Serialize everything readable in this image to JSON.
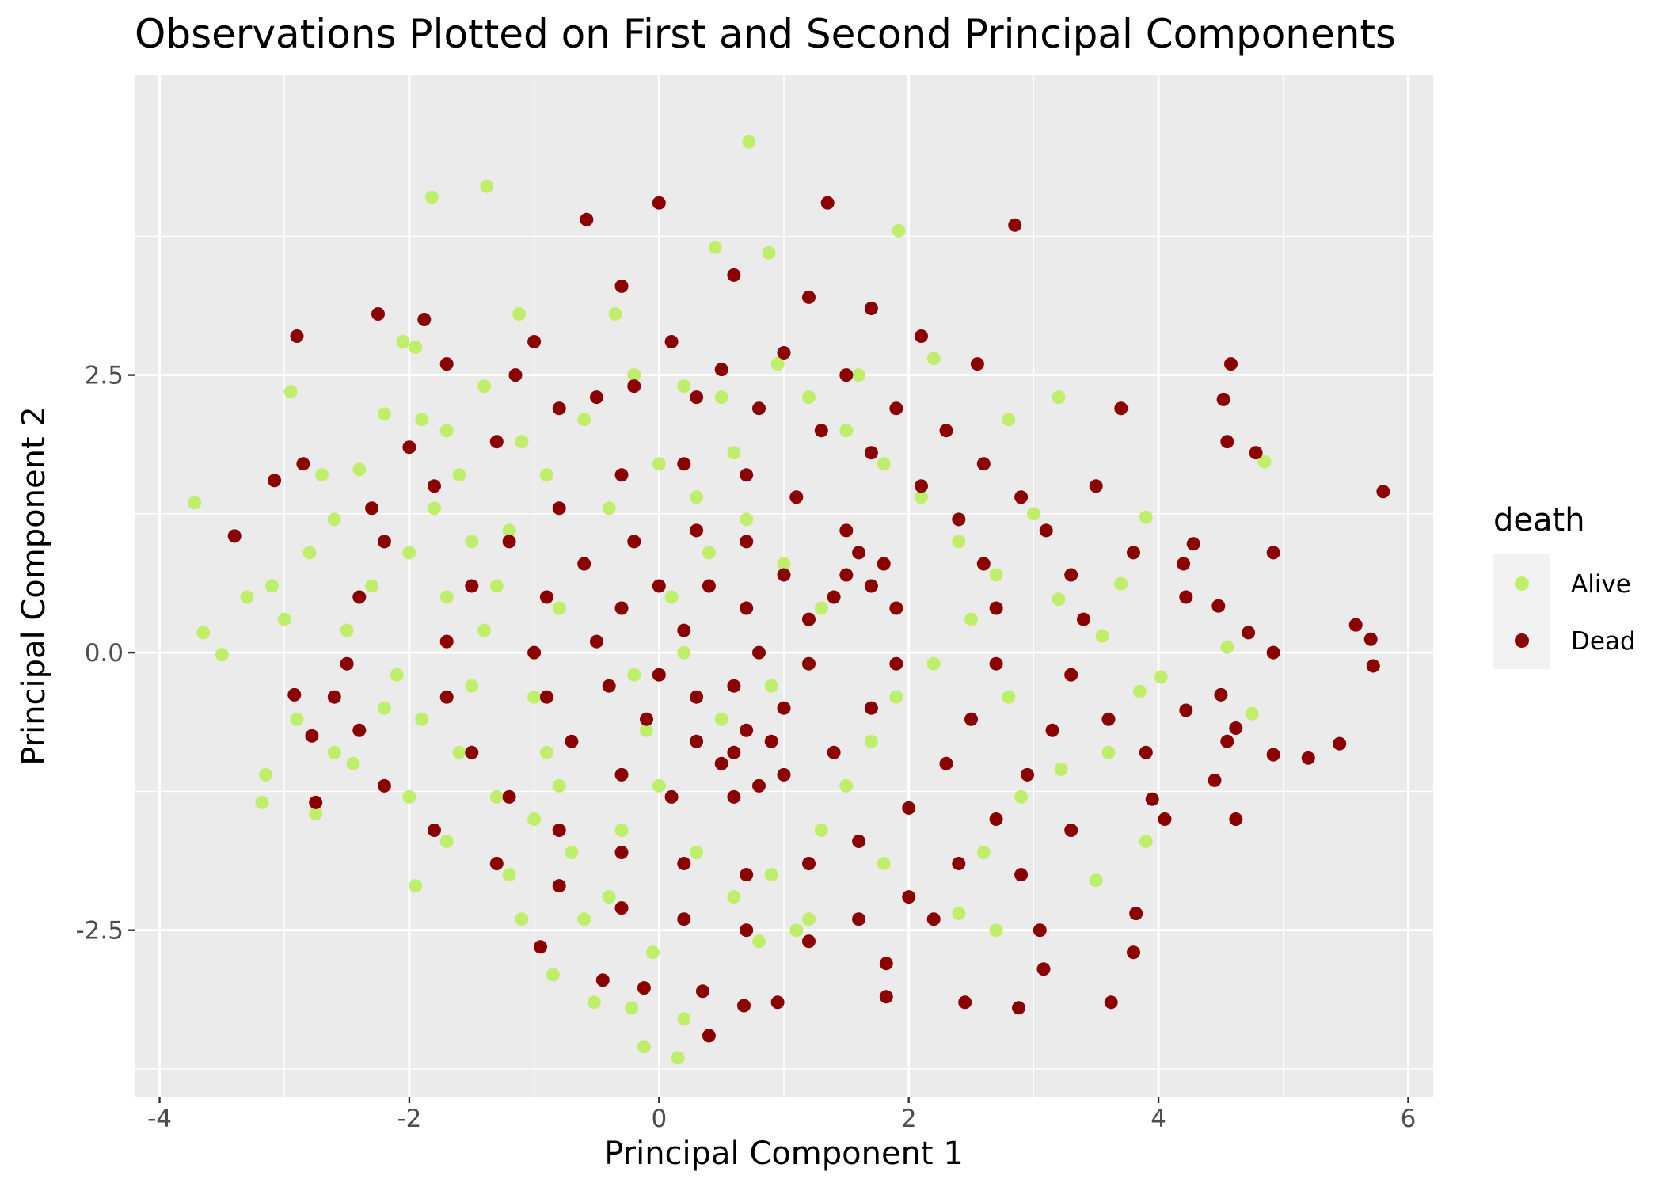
{
  "chart_data": {
    "type": "scatter",
    "title": "Observations Plotted on First and Second Principal Components",
    "xlabel": "Principal Component 1",
    "ylabel": "Principal Component 2",
    "xlim": [
      -4.2,
      6.2
    ],
    "ylim": [
      -4.0,
      5.2
    ],
    "x_ticks": [
      -4,
      -2,
      0,
      2,
      4,
      6
    ],
    "x_tick_labels": [
      "-4",
      "-2",
      "0",
      "2",
      "4",
      "6"
    ],
    "y_ticks": [
      -2.5,
      0.0,
      2.5
    ],
    "y_tick_labels": [
      "-2.5",
      "0.0",
      "2.5"
    ],
    "grid": true,
    "legend": {
      "title": "death",
      "placement": "right",
      "entries": [
        {
          "label": "Alive",
          "color": "#bfef6a"
        },
        {
          "label": "Dead",
          "color": "#8b0000"
        }
      ]
    },
    "series": [
      {
        "name": "Alive",
        "color": "#bfef6a",
        "points": [
          [
            0.72,
            4.6
          ],
          [
            -1.82,
            4.1
          ],
          [
            -1.38,
            4.2
          ],
          [
            0.45,
            3.65
          ],
          [
            0.88,
            3.6
          ],
          [
            1.92,
            3.8
          ],
          [
            -3.72,
            1.35
          ],
          [
            -3.65,
            0.18
          ],
          [
            -3.5,
            -0.02
          ],
          [
            -3.15,
            -1.1
          ],
          [
            -3.18,
            -1.35
          ],
          [
            -2.95,
            2.35
          ],
          [
            -2.05,
            2.8
          ],
          [
            -1.95,
            2.75
          ],
          [
            -1.12,
            3.05
          ],
          [
            -0.35,
            3.05
          ],
          [
            2.2,
            2.65
          ],
          [
            3.2,
            2.3
          ],
          [
            2.8,
            2.1
          ],
          [
            4.85,
            1.72
          ],
          [
            3.9,
            1.22
          ],
          [
            3.0,
            1.25
          ],
          [
            4.55,
            0.05
          ],
          [
            3.7,
            0.62
          ],
          [
            3.2,
            0.48
          ],
          [
            3.55,
            0.15
          ],
          [
            3.85,
            -0.35
          ],
          [
            4.75,
            -0.55
          ],
          [
            4.02,
            -0.22
          ],
          [
            3.6,
            -0.9
          ],
          [
            3.22,
            -1.05
          ],
          [
            3.9,
            -1.7
          ],
          [
            3.5,
            -2.05
          ],
          [
            2.4,
            -2.35
          ],
          [
            2.7,
            -2.5
          ],
          [
            1.8,
            -1.9
          ],
          [
            1.2,
            -2.4
          ],
          [
            0.2,
            -3.3
          ],
          [
            -0.12,
            -3.55
          ],
          [
            0.15,
            -3.65
          ],
          [
            -0.52,
            -3.15
          ],
          [
            -0.22,
            -3.2
          ],
          [
            -0.85,
            -2.9
          ],
          [
            -1.1,
            -2.4
          ],
          [
            -1.95,
            -2.1
          ],
          [
            -2.75,
            -1.45
          ],
          [
            -2.6,
            -0.9
          ],
          [
            -2.9,
            -0.6
          ],
          [
            -3.0,
            0.3
          ],
          [
            -3.3,
            0.5
          ],
          [
            -2.4,
            1.65
          ],
          [
            -2.7,
            1.6
          ],
          [
            -2.2,
            2.15
          ],
          [
            -1.7,
            2.0
          ],
          [
            -1.4,
            2.4
          ],
          [
            -1.8,
            1.3
          ],
          [
            -1.5,
            1.0
          ],
          [
            -1.2,
            1.1
          ],
          [
            -0.9,
            1.6
          ],
          [
            -0.6,
            2.1
          ],
          [
            -0.2,
            2.5
          ],
          [
            0.2,
            2.4
          ],
          [
            0.5,
            2.3
          ],
          [
            0.6,
            1.8
          ],
          [
            -2.3,
            0.6
          ],
          [
            -2.0,
            0.9
          ],
          [
            -1.7,
            0.5
          ],
          [
            -1.4,
            0.2
          ],
          [
            -2.1,
            -0.2
          ],
          [
            -1.9,
            -0.6
          ],
          [
            -1.6,
            -0.9
          ],
          [
            -1.3,
            -1.3
          ],
          [
            -1.0,
            -1.5
          ],
          [
            -0.7,
            -1.8
          ],
          [
            -0.4,
            -2.2
          ],
          [
            -0.6,
            -2.4
          ],
          [
            -0.3,
            -1.6
          ],
          [
            0.0,
            -1.2
          ],
          [
            0.3,
            -1.8
          ],
          [
            0.6,
            -2.2
          ],
          [
            0.9,
            -2.0
          ],
          [
            1.3,
            -1.6
          ],
          [
            1.5,
            -1.2
          ],
          [
            1.7,
            -0.8
          ],
          [
            1.9,
            -0.4
          ],
          [
            2.2,
            -0.1
          ],
          [
            2.5,
            0.3
          ],
          [
            2.7,
            0.7
          ],
          [
            2.4,
            1.0
          ],
          [
            2.1,
            1.4
          ],
          [
            1.8,
            1.7
          ],
          [
            1.5,
            2.0
          ],
          [
            1.2,
            2.3
          ],
          [
            -0.8,
            0.4
          ],
          [
            -0.5,
            0.1
          ],
          [
            -0.2,
            -0.2
          ],
          [
            0.1,
            0.5
          ],
          [
            0.4,
            0.9
          ],
          [
            0.7,
            1.2
          ],
          [
            1.0,
            0.8
          ],
          [
            1.3,
            0.4
          ],
          [
            0.9,
            -0.3
          ],
          [
            0.5,
            -0.6
          ],
          [
            -1.0,
            -0.4
          ],
          [
            -1.3,
            0.6
          ],
          [
            -1.6,
            1.6
          ],
          [
            -2.5,
            0.2
          ],
          [
            -2.2,
            -0.5
          ],
          [
            -1.1,
            1.9
          ],
          [
            -0.4,
            1.3
          ],
          [
            0.0,
            1.7
          ],
          [
            0.3,
            1.4
          ],
          [
            -1.7,
            -1.7
          ],
          [
            -1.2,
            -2.0
          ],
          [
            -0.9,
            -0.9
          ],
          [
            -2.45,
            -1.0
          ],
          [
            -2.0,
            -1.3
          ],
          [
            -1.5,
            -0.3
          ],
          [
            -0.8,
            -1.2
          ],
          [
            -0.1,
            -0.7
          ],
          [
            0.2,
            0.0
          ],
          [
            2.8,
            -0.4
          ],
          [
            2.9,
            -1.3
          ],
          [
            2.6,
            -1.8
          ],
          [
            1.1,
            -2.5
          ],
          [
            0.8,
            -2.6
          ],
          [
            -0.05,
            -2.7
          ],
          [
            -2.8,
            0.9
          ],
          [
            -3.1,
            0.6
          ],
          [
            -2.6,
            1.2
          ],
          [
            -1.9,
            2.1
          ],
          [
            1.6,
            2.5
          ],
          [
            0.95,
            2.6
          ]
        ]
      },
      {
        "name": "Dead",
        "color": "#8b0000",
        "points": [
          [
            0.0,
            4.05
          ],
          [
            1.35,
            4.05
          ],
          [
            -0.58,
            3.9
          ],
          [
            2.85,
            3.85
          ],
          [
            -2.9,
            2.85
          ],
          [
            -2.25,
            3.05
          ],
          [
            -1.88,
            3.0
          ],
          [
            2.1,
            2.85
          ],
          [
            2.55,
            2.6
          ],
          [
            4.58,
            2.6
          ],
          [
            4.52,
            2.28
          ],
          [
            3.7,
            2.2
          ],
          [
            4.55,
            1.9
          ],
          [
            4.78,
            1.8
          ],
          [
            5.8,
            1.45
          ],
          [
            4.28,
            0.98
          ],
          [
            4.92,
            0.9
          ],
          [
            4.2,
            0.8
          ],
          [
            4.22,
            0.5
          ],
          [
            4.48,
            0.42
          ],
          [
            5.58,
            0.25
          ],
          [
            4.72,
            0.18
          ],
          [
            5.7,
            0.12
          ],
          [
            4.92,
            0.0
          ],
          [
            5.72,
            -0.12
          ],
          [
            4.5,
            -0.38
          ],
          [
            4.22,
            -0.52
          ],
          [
            4.62,
            -0.68
          ],
          [
            4.92,
            -0.92
          ],
          [
            4.55,
            -0.8
          ],
          [
            5.2,
            -0.95
          ],
          [
            5.45,
            -0.82
          ],
          [
            4.45,
            -1.15
          ],
          [
            4.62,
            -1.5
          ],
          [
            3.95,
            -1.32
          ],
          [
            4.05,
            -1.5
          ],
          [
            3.82,
            -2.35
          ],
          [
            3.8,
            -2.7
          ],
          [
            3.62,
            -3.15
          ],
          [
            3.05,
            -2.5
          ],
          [
            3.08,
            -2.85
          ],
          [
            2.88,
            -3.2
          ],
          [
            2.45,
            -3.15
          ],
          [
            1.82,
            -3.1
          ],
          [
            1.82,
            -2.8
          ],
          [
            0.95,
            -3.15
          ],
          [
            0.68,
            -3.18
          ],
          [
            0.4,
            -3.45
          ],
          [
            0.35,
            -3.05
          ],
          [
            -0.12,
            -3.02
          ],
          [
            -0.45,
            -2.95
          ],
          [
            -0.95,
            -2.65
          ],
          [
            -2.75,
            -1.35
          ],
          [
            -2.78,
            -0.75
          ],
          [
            -2.92,
            -0.38
          ],
          [
            -3.08,
            1.55
          ],
          [
            -3.4,
            1.05
          ],
          [
            -2.85,
            1.7
          ],
          [
            -2.0,
            1.85
          ],
          [
            -1.7,
            2.6
          ],
          [
            -1.15,
            2.5
          ],
          [
            -0.5,
            2.3
          ],
          [
            0.1,
            2.8
          ],
          [
            0.5,
            2.55
          ],
          [
            1.0,
            2.7
          ],
          [
            1.5,
            2.5
          ],
          [
            1.9,
            2.2
          ],
          [
            2.3,
            2.0
          ],
          [
            2.6,
            1.7
          ],
          [
            2.9,
            1.4
          ],
          [
            3.1,
            1.1
          ],
          [
            3.3,
            0.7
          ],
          [
            3.4,
            0.3
          ],
          [
            3.3,
            -0.2
          ],
          [
            3.15,
            -0.7
          ],
          [
            2.95,
            -1.1
          ],
          [
            2.7,
            -1.5
          ],
          [
            2.4,
            -1.9
          ],
          [
            2.0,
            -2.2
          ],
          [
            1.6,
            -2.4
          ],
          [
            1.2,
            -2.6
          ],
          [
            0.7,
            -2.5
          ],
          [
            0.2,
            -2.4
          ],
          [
            -0.3,
            -2.3
          ],
          [
            -0.8,
            -2.1
          ],
          [
            -1.3,
            -1.9
          ],
          [
            -1.8,
            -1.6
          ],
          [
            -2.2,
            -1.2
          ],
          [
            -2.4,
            -0.7
          ],
          [
            -2.5,
            -0.1
          ],
          [
            -2.4,
            0.5
          ],
          [
            -2.2,
            1.0
          ],
          [
            -1.8,
            1.5
          ],
          [
            -1.3,
            1.9
          ],
          [
            -0.8,
            2.2
          ],
          [
            -0.2,
            2.4
          ],
          [
            0.3,
            2.3
          ],
          [
            0.8,
            2.2
          ],
          [
            1.3,
            2.0
          ],
          [
            1.7,
            1.8
          ],
          [
            2.1,
            1.5
          ],
          [
            2.4,
            1.2
          ],
          [
            2.6,
            0.8
          ],
          [
            2.7,
            0.4
          ],
          [
            2.7,
            -0.1
          ],
          [
            2.5,
            -0.6
          ],
          [
            2.3,
            -1.0
          ],
          [
            2.0,
            -1.4
          ],
          [
            1.6,
            -1.7
          ],
          [
            1.2,
            -1.9
          ],
          [
            0.7,
            -2.0
          ],
          [
            0.2,
            -1.9
          ],
          [
            -0.3,
            -1.8
          ],
          [
            -0.8,
            -1.6
          ],
          [
            -1.2,
            -1.3
          ],
          [
            -1.5,
            -0.9
          ],
          [
            -1.7,
            -0.4
          ],
          [
            -1.7,
            0.1
          ],
          [
            -1.5,
            0.6
          ],
          [
            -1.2,
            1.0
          ],
          [
            -0.8,
            1.3
          ],
          [
            -0.3,
            1.6
          ],
          [
            0.2,
            1.7
          ],
          [
            0.7,
            1.6
          ],
          [
            1.1,
            1.4
          ],
          [
            1.5,
            1.1
          ],
          [
            1.8,
            0.8
          ],
          [
            1.9,
            0.4
          ],
          [
            1.9,
            -0.1
          ],
          [
            1.7,
            -0.5
          ],
          [
            1.4,
            -0.9
          ],
          [
            1.0,
            -1.1
          ],
          [
            0.6,
            -1.3
          ],
          [
            0.1,
            -1.3
          ],
          [
            -0.3,
            -1.1
          ],
          [
            -0.7,
            -0.8
          ],
          [
            -0.9,
            -0.4
          ],
          [
            -1.0,
            0.0
          ],
          [
            -0.9,
            0.5
          ],
          [
            -0.6,
            0.8
          ],
          [
            -0.2,
            1.0
          ],
          [
            0.3,
            1.1
          ],
          [
            0.7,
            1.0
          ],
          [
            1.0,
            0.7
          ],
          [
            1.2,
            0.3
          ],
          [
            1.2,
            -0.1
          ],
          [
            1.0,
            -0.5
          ],
          [
            0.7,
            -0.7
          ],
          [
            0.3,
            -0.8
          ],
          [
            -0.1,
            -0.6
          ],
          [
            -0.4,
            -0.3
          ],
          [
            -0.5,
            0.1
          ],
          [
            -0.3,
            0.4
          ],
          [
            0.0,
            0.6
          ],
          [
            0.4,
            0.6
          ],
          [
            0.7,
            0.4
          ],
          [
            0.8,
            0.0
          ],
          [
            0.6,
            -0.3
          ],
          [
            0.3,
            -0.4
          ],
          [
            0.0,
            -0.2
          ],
          [
            0.2,
            0.2
          ],
          [
            1.5,
            0.7
          ],
          [
            1.6,
            0.9
          ],
          [
            1.7,
            0.6
          ],
          [
            1.4,
            0.5
          ],
          [
            0.6,
            -0.9
          ],
          [
            0.9,
            -0.8
          ],
          [
            0.8,
            -1.2
          ],
          [
            0.5,
            -1.0
          ],
          [
            3.5,
            1.5
          ],
          [
            3.8,
            0.9
          ],
          [
            3.6,
            -0.6
          ],
          [
            3.9,
            -0.9
          ],
          [
            3.3,
            -1.6
          ],
          [
            2.9,
            -2.0
          ],
          [
            2.2,
            -2.4
          ],
          [
            -2.6,
            -0.4
          ],
          [
            -2.3,
            1.3
          ],
          [
            -1.0,
            2.8
          ],
          [
            0.6,
            3.4
          ],
          [
            1.2,
            3.2
          ],
          [
            -0.3,
            3.3
          ],
          [
            1.7,
            3.1
          ]
        ]
      }
    ]
  }
}
